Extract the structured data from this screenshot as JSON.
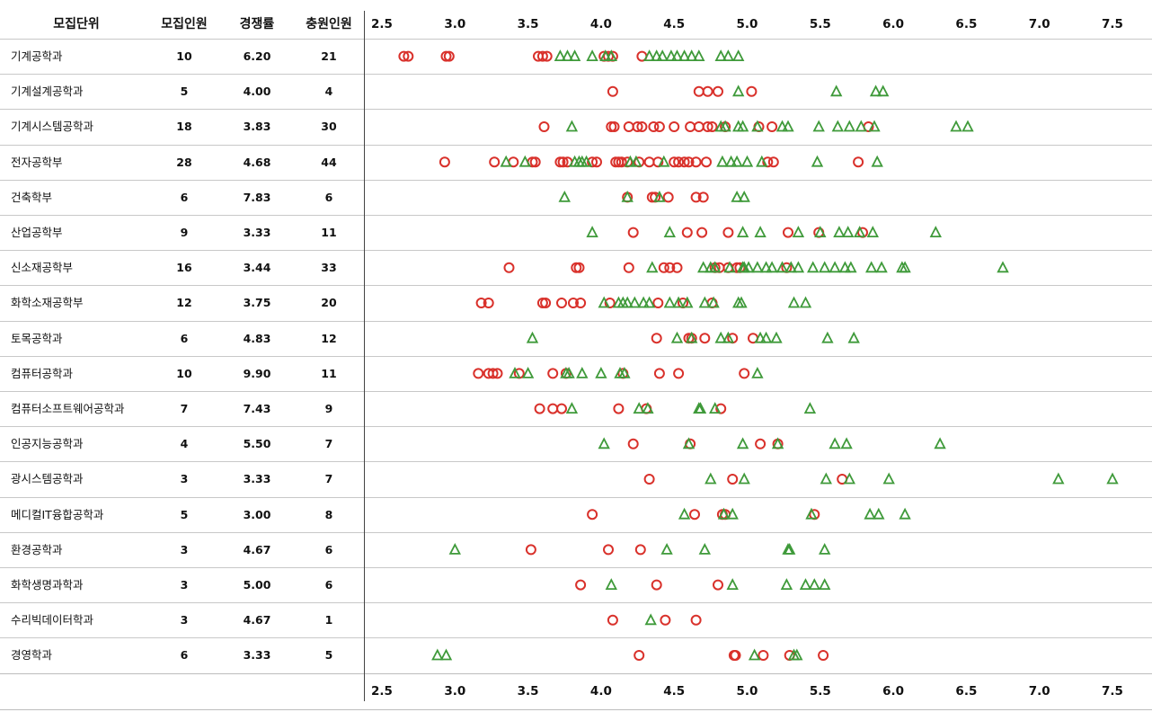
{
  "headers": {
    "unit": "모집단위",
    "quota": "모집인원",
    "rate": "경쟁률",
    "extra": "충원인원"
  },
  "rows": [
    {
      "name": "기계공학과",
      "quota": "10",
      "rate": "6.20",
      "extra": "21"
    },
    {
      "name": "기계설계공학과",
      "quota": "5",
      "rate": "4.00",
      "extra": "4"
    },
    {
      "name": "기계시스템공학과",
      "quota": "18",
      "rate": "3.83",
      "extra": "30"
    },
    {
      "name": "전자공학부",
      "quota": "28",
      "rate": "4.68",
      "extra": "44"
    },
    {
      "name": "건축학부",
      "quota": "6",
      "rate": "7.83",
      "extra": "6"
    },
    {
      "name": "산업공학부",
      "quota": "9",
      "rate": "3.33",
      "extra": "11"
    },
    {
      "name": "신소재공학부",
      "quota": "16",
      "rate": "3.44",
      "extra": "33"
    },
    {
      "name": "화학소재공학부",
      "quota": "12",
      "rate": "3.75",
      "extra": "20"
    },
    {
      "name": "토목공학과",
      "quota": "6",
      "rate": "4.83",
      "extra": "12"
    },
    {
      "name": "컴퓨터공학과",
      "quota": "10",
      "rate": "9.90",
      "extra": "11"
    },
    {
      "name": "컴퓨터소프트웨어공학과",
      "quota": "7",
      "rate": "7.43",
      "extra": "9"
    },
    {
      "name": "인공지능공학과",
      "quota": "4",
      "rate": "5.50",
      "extra": "7"
    },
    {
      "name": "광시스템공학과",
      "quota": "3",
      "rate": "3.33",
      "extra": "7"
    },
    {
      "name": "메디컬IT융합공학과",
      "quota": "5",
      "rate": "3.00",
      "extra": "8"
    },
    {
      "name": "환경공학과",
      "quota": "3",
      "rate": "4.67",
      "extra": "6"
    },
    {
      "name": "화학생명과학과",
      "quota": "3",
      "rate": "5.00",
      "extra": "6"
    },
    {
      "name": "수리빅데이터학과",
      "quota": "3",
      "rate": "4.67",
      "extra": "1"
    },
    {
      "name": "경영학과",
      "quota": "6",
      "rate": "3.33",
      "extra": "5"
    }
  ],
  "colors": {
    "circle": "#d9312b",
    "triangle": "#3f9a3a",
    "grid": "#c8c8c8",
    "axis": "#444444"
  },
  "chart_data": {
    "type": "scatter",
    "title": "",
    "xlabel": "",
    "ylabel": "",
    "xlim": [
      2.5,
      7.5
    ],
    "x_ticks": [
      "2.5",
      "3.0",
      "3.5",
      "4.0",
      "4.5",
      "5.0",
      "5.5",
      "6.0",
      "6.5",
      "7.0",
      "7.5"
    ],
    "x_tick_values": [
      2.5,
      3.0,
      3.5,
      4.0,
      4.5,
      5.0,
      5.5,
      6.0,
      6.5,
      7.0,
      7.5
    ],
    "grid": "horizontal",
    "legend": "none",
    "categories": [
      "기계공학과",
      "기계설계공학과",
      "기계시스템공학과",
      "전자공학부",
      "건축학부",
      "산업공학부",
      "신소재공학부",
      "화학소재공학부",
      "토목공학과",
      "컴퓨터공학과",
      "컴퓨터소프트웨어공학과",
      "인공지능공학과",
      "광시스템공학과",
      "메디컬IT융합공학과",
      "환경공학과",
      "화학생명과학과",
      "수리빅데이터학과",
      "경영학과"
    ],
    "series": [
      {
        "marker": "circle",
        "values": [
          [
            2.65,
            2.68,
            2.94,
            2.96,
            3.57,
            3.6,
            3.63,
            4.02,
            4.05,
            4.08,
            4.28
          ],
          [
            4.08,
            4.67,
            4.73,
            4.8,
            5.03
          ],
          [
            3.61,
            4.07,
            4.09,
            4.19,
            4.25,
            4.28,
            4.36,
            4.4,
            4.5,
            4.61,
            4.67,
            4.73,
            4.76,
            4.85,
            5.08,
            5.17,
            5.83
          ],
          [
            2.93,
            3.27,
            3.4,
            3.53,
            3.55,
            3.72,
            3.74,
            3.77,
            3.94,
            3.97,
            4.1,
            4.12,
            4.14,
            4.18,
            4.26,
            4.33,
            4.39,
            4.5,
            4.53,
            4.57,
            4.6,
            4.65,
            4.72,
            5.14,
            5.18,
            5.76
          ],
          [
            4.18,
            4.35,
            4.37,
            4.46,
            4.65,
            4.7
          ],
          [
            4.22,
            4.59,
            4.69,
            4.87,
            5.28,
            5.49,
            5.79
          ],
          [
            3.37,
            3.83,
            3.85,
            4.19,
            4.43,
            4.47,
            4.52,
            4.78,
            4.81,
            4.87,
            4.93,
            4.95,
            5.27
          ],
          [
            3.18,
            3.23,
            3.6,
            3.62,
            3.73,
            3.81,
            3.86,
            4.06,
            4.39,
            4.56,
            4.76
          ],
          [
            4.38,
            4.6,
            4.62,
            4.71,
            4.9,
            5.04
          ],
          [
            3.16,
            3.23,
            3.26,
            3.29,
            3.44,
            3.67,
            3.76,
            4.15,
            4.4,
            4.53,
            4.98
          ],
          [
            3.58,
            3.67,
            3.73,
            4.12,
            4.31,
            4.82
          ],
          [
            4.22,
            4.61,
            5.09,
            5.21
          ],
          [
            4.33,
            4.9,
            5.65
          ],
          [
            3.94,
            4.64,
            4.83,
            4.85,
            5.46
          ],
          [
            3.52,
            4.05,
            4.27
          ],
          [
            3.86,
            4.38,
            4.8
          ],
          [
            4.08,
            4.44,
            4.65
          ],
          [
            4.26,
            4.91,
            4.92,
            5.11,
            5.29,
            5.52
          ]
        ]
      },
      {
        "marker": "triangle",
        "values": [
          [
            3.72,
            3.77,
            3.82,
            3.94,
            4.03,
            4.07,
            4.33,
            4.38,
            4.42,
            4.48,
            4.52,
            4.57,
            4.62,
            4.67,
            4.82,
            4.87,
            4.94
          ],
          [
            4.94,
            5.61,
            5.88,
            5.93
          ],
          [
            3.8,
            4.82,
            4.85,
            4.94,
            4.97,
            5.07,
            5.24,
            5.28,
            5.49,
            5.62,
            5.7,
            5.78,
            5.87,
            6.43,
            6.51
          ],
          [
            3.35,
            3.48,
            3.82,
            3.85,
            3.87,
            3.9,
            4.2,
            4.24,
            4.43,
            4.83,
            4.89,
            4.93,
            5.0,
            5.1,
            5.48,
            5.89
          ],
          [
            3.75,
            4.18,
            4.4,
            4.93,
            4.98
          ],
          [
            3.94,
            4.47,
            4.97,
            5.09,
            5.35,
            5.5,
            5.63,
            5.69,
            5.77,
            5.86,
            6.29
          ],
          [
            4.35,
            4.7,
            4.75,
            4.78,
            4.88,
            4.97,
            4.98,
            5.01,
            5.07,
            5.13,
            5.17,
            5.24,
            5.3,
            5.35,
            5.45,
            5.53,
            5.6,
            5.67,
            5.71,
            5.85,
            5.92,
            6.06,
            6.08,
            6.75
          ],
          [
            4.02,
            4.12,
            4.15,
            4.18,
            4.23,
            4.29,
            4.33,
            4.47,
            4.53,
            4.59,
            4.71,
            4.77,
            4.94,
            4.96,
            5.32,
            5.4
          ],
          [
            3.53,
            4.52,
            4.62,
            4.82,
            4.87,
            5.09,
            5.13,
            5.2,
            5.55,
            5.73
          ],
          [
            3.41,
            3.5,
            3.76,
            3.78,
            3.87,
            4.0,
            4.13,
            4.16,
            5.07
          ],
          [
            3.8,
            4.26,
            4.32,
            4.67,
            4.68,
            4.78,
            5.43
          ],
          [
            4.02,
            4.6,
            4.97,
            5.21,
            5.6,
            5.68,
            6.32
          ],
          [
            4.75,
            4.98,
            5.54,
            5.7,
            5.97,
            7.13,
            7.5
          ],
          [
            4.57,
            4.84,
            4.9,
            5.44,
            5.84,
            5.9,
            6.08
          ],
          [
            3.0,
            4.45,
            4.71,
            5.28,
            5.29,
            5.53
          ],
          [
            4.07,
            4.9,
            5.27,
            5.4,
            5.46,
            5.53
          ],
          [
            4.34
          ],
          [
            2.88,
            2.94,
            5.05,
            5.32,
            5.34
          ]
        ]
      }
    ]
  }
}
